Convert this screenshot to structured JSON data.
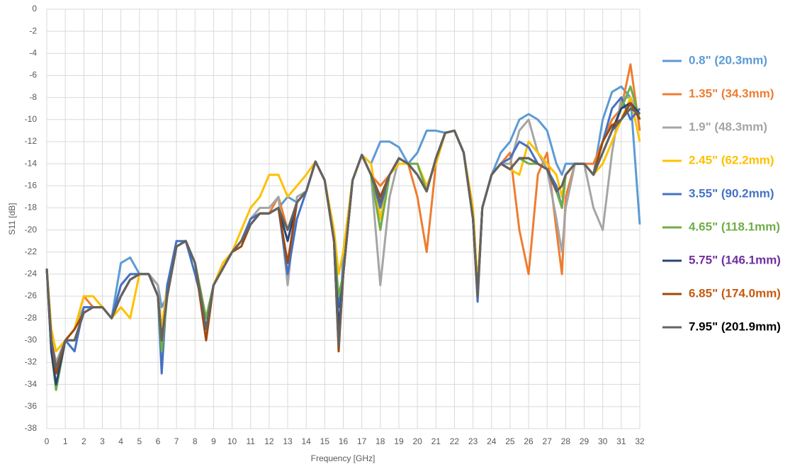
{
  "chart_data": {
    "type": "line",
    "x_label": "Frequency [GHz]",
    "y_label": "S11 [dB]",
    "xlim": [
      0,
      32
    ],
    "xticks": [
      0,
      1,
      2,
      3,
      4,
      5,
      6,
      7,
      8,
      9,
      10,
      11,
      12,
      13,
      14,
      15,
      16,
      17,
      18,
      19,
      20,
      21,
      22,
      23,
      24,
      25,
      26,
      27,
      28,
      29,
      30,
      31,
      32
    ],
    "ylim": [
      -38,
      0
    ],
    "yticks": [
      -38,
      -36,
      -34,
      -32,
      -30,
      -28,
      -26,
      -24,
      -22,
      -20,
      -18,
      -16,
      -14,
      -12,
      -10,
      -8,
      -6,
      -4,
      -2,
      0
    ],
    "grid": true,
    "legend": "right",
    "x": [
      0,
      0.25,
      0.5,
      1,
      1.5,
      2,
      2.5,
      3,
      3.5,
      4,
      4.5,
      5,
      5.5,
      6,
      6.2,
      6.5,
      7,
      7.5,
      8,
      8.6,
      9,
      9.5,
      10,
      10.5,
      11,
      11.5,
      12,
      12.5,
      13,
      13.5,
      14,
      14.5,
      15,
      15.5,
      15.75,
      16,
      16.5,
      17,
      17.5,
      18,
      18.5,
      19,
      19.5,
      20,
      20.5,
      21,
      21.5,
      22,
      22.5,
      23,
      23.25,
      23.5,
      24,
      24.5,
      25,
      25.5,
      26,
      26.5,
      27,
      27.5,
      27.8,
      28,
      28.5,
      29,
      29.5,
      30,
      30.5,
      31,
      31.5,
      32
    ],
    "series": [
      {
        "name": "0.8\" (20.3mm)",
        "color": "#5B9BD5",
        "label_color": "#5B9BD5",
        "values": [
          -23.5,
          -30,
          -33,
          -30,
          -30,
          -27.5,
          -27,
          -27,
          -28,
          -23,
          -22.5,
          -24,
          -24,
          -25,
          -27,
          -26,
          -21.5,
          -21,
          -23,
          -29,
          -25,
          -23.5,
          -22,
          -21,
          -19.5,
          -18.5,
          -18.5,
          -18,
          -17,
          -17.5,
          -16.5,
          -13.8,
          -15.5,
          -21,
          -30.5,
          -22,
          -15.5,
          -13.2,
          -14,
          -12,
          -12,
          -12.5,
          -14,
          -13,
          -11,
          -11,
          -11.2,
          -11,
          -13,
          -19,
          -26,
          -18,
          -15,
          -13,
          -12,
          -10,
          -9.5,
          -10,
          -11,
          -14,
          -15,
          -14,
          -14,
          -14,
          -15,
          -10,
          -7.5,
          -7,
          -8,
          -19.5
        ]
      },
      {
        "name": "1.35\" (34.3mm)",
        "color": "#ED7D31",
        "label_color": "#ED7D31",
        "values": [
          -23.5,
          -30,
          -32,
          -30,
          -29,
          -26,
          -27,
          -27,
          -28,
          -26,
          -24.5,
          -24,
          -24,
          -26,
          -31,
          -26,
          -21.5,
          -21,
          -23,
          -29,
          -25,
          -23.5,
          -22,
          -21,
          -19,
          -18.5,
          -18.5,
          -17,
          -20,
          -17.5,
          -16.5,
          -13.8,
          -15.5,
          -21,
          -30.5,
          -24,
          -15.5,
          -13.2,
          -15,
          -16,
          -15,
          -13.5,
          -14,
          -17,
          -22,
          -14,
          -11.2,
          -11,
          -13,
          -19,
          -26,
          -18,
          -15,
          -14,
          -13,
          -20,
          -24,
          -15,
          -13,
          -20,
          -24,
          -17,
          -14,
          -14,
          -14,
          -12,
          -10,
          -9,
          -5,
          -11
        ]
      },
      {
        "name": "1.9\" (48.3mm)",
        "color": "#A5A5A5",
        "label_color": "#A5A5A5",
        "values": [
          -23.5,
          -30,
          -32,
          -30,
          -29,
          -27,
          -27,
          -27,
          -28,
          -25,
          -24,
          -24,
          -24,
          -25,
          -29,
          -25,
          -21.5,
          -21,
          -23,
          -28,
          -25,
          -23.5,
          -22,
          -21,
          -19,
          -18,
          -18,
          -17,
          -25,
          -17,
          -16.5,
          -13.8,
          -15.5,
          -21,
          -30.5,
          -24,
          -15.5,
          -13.2,
          -15,
          -25,
          -17,
          -13.5,
          -14,
          -15,
          -16.5,
          -13.5,
          -11.2,
          -11,
          -13,
          -19,
          -26,
          -18,
          -15,
          -14,
          -14,
          -11,
          -10,
          -13,
          -14.5,
          -19,
          -22,
          -18,
          -14,
          -14,
          -18,
          -20,
          -13,
          -8,
          -8,
          -10
        ]
      },
      {
        "name": "2.45\" (62.2mm)",
        "color": "#FFC000",
        "label_color": "#FFC000",
        "values": [
          -23.5,
          -29,
          -31,
          -30,
          -29,
          -26,
          -26,
          -27,
          -28,
          -27,
          -28,
          -24,
          -24,
          -26,
          -29,
          -25,
          -21.5,
          -21,
          -23,
          -28,
          -25,
          -23,
          -22,
          -20,
          -18,
          -17,
          -15,
          -15,
          -17,
          -16,
          -15,
          -13.8,
          -15.5,
          -20,
          -24,
          -22,
          -15.5,
          -13.2,
          -14,
          -19,
          -15,
          -14,
          -14,
          -14,
          -16,
          -14,
          -11.2,
          -11,
          -13,
          -18,
          -25,
          -18,
          -15,
          -14,
          -14.5,
          -15,
          -12,
          -13,
          -14,
          -15,
          -17,
          -15,
          -14,
          -14,
          -15,
          -14,
          -12,
          -10,
          -8,
          -12
        ]
      },
      {
        "name": "3.55\" (90.2mm)",
        "color": "#4472C4",
        "label_color": "#4472C4",
        "values": [
          -23.5,
          -31,
          -33,
          -30,
          -31,
          -27,
          -27,
          -27,
          -28,
          -25,
          -24,
          -24,
          -24,
          -26,
          -33,
          -25,
          -21,
          -21,
          -24,
          -28,
          -25,
          -23.5,
          -22,
          -21,
          -19,
          -18.5,
          -18.5,
          -18,
          -24,
          -19,
          -16.5,
          -13.8,
          -15.5,
          -21,
          -27,
          -24,
          -15.5,
          -13.2,
          -15,
          -18,
          -15,
          -13.5,
          -14,
          -15,
          -16.5,
          -13.5,
          -11.2,
          -11,
          -13,
          -19,
          -26.5,
          -18,
          -15,
          -14,
          -13.5,
          -12,
          -12.5,
          -14,
          -14.5,
          -16,
          -18,
          -15,
          -14,
          -14,
          -15,
          -12,
          -9,
          -8,
          -10,
          -9
        ]
      },
      {
        "name": "4.65\" (118.1mm)",
        "color": "#70AD47",
        "label_color": "#70AD47",
        "values": [
          -23.5,
          -31,
          -34.5,
          -30,
          -30,
          -27.5,
          -27,
          -27,
          -28,
          -26,
          -24.5,
          -24,
          -24,
          -26,
          -31,
          -26,
          -21.5,
          -21,
          -23,
          -28,
          -25,
          -23.5,
          -22,
          -21,
          -19.5,
          -18.5,
          -18.5,
          -18,
          -20,
          -17.5,
          -16.5,
          -13.8,
          -15.5,
          -21,
          -26,
          -24,
          -15.5,
          -13.2,
          -15,
          -20,
          -15,
          -13.5,
          -14,
          -14,
          -16.5,
          -13.5,
          -11.2,
          -11,
          -13,
          -19,
          -26,
          -18,
          -15,
          -14,
          -14.5,
          -13.5,
          -14,
          -14,
          -14.5,
          -16.5,
          -18,
          -15,
          -14,
          -14,
          -15,
          -13,
          -11,
          -9,
          -7,
          -10
        ]
      },
      {
        "name": "5.75\" (146.1mm)",
        "color": "#264478",
        "label_color": "#7030A0",
        "values": [
          -23.5,
          -31,
          -34,
          -30,
          -30,
          -27.5,
          -27,
          -27,
          -28,
          -26,
          -24.5,
          -24,
          -24,
          -26,
          -30,
          -26,
          -21.5,
          -21,
          -23,
          -29,
          -25,
          -23.5,
          -22,
          -21,
          -19.5,
          -18.5,
          -18.5,
          -18,
          -21,
          -17.5,
          -16.5,
          -13.8,
          -15.5,
          -21,
          -29,
          -24,
          -15.5,
          -13.2,
          -15,
          -17,
          -15,
          -13.5,
          -14,
          -15,
          -16.5,
          -13.5,
          -11.2,
          -11,
          -13,
          -19,
          -26,
          -18,
          -15,
          -14,
          -14.5,
          -13.5,
          -13.5,
          -14,
          -14.5,
          -16.5,
          -16,
          -15,
          -14,
          -14,
          -15,
          -13,
          -11,
          -9,
          -8.5,
          -9.5
        ]
      },
      {
        "name": "6.85\" (174.0mm)",
        "color": "#9E480E",
        "label_color": "#C55A11",
        "values": [
          -23.5,
          -30,
          -33,
          -30,
          -29,
          -27.5,
          -27,
          -27,
          -28,
          -26,
          -24.5,
          -24,
          -24,
          -26,
          -30,
          -26,
          -21.5,
          -21,
          -23,
          -30,
          -25,
          -23.5,
          -22,
          -21.5,
          -19.5,
          -18.5,
          -18.5,
          -18,
          -23,
          -17.5,
          -16.5,
          -13.8,
          -15.5,
          -21,
          -31,
          -24,
          -15.5,
          -13.2,
          -15,
          -17,
          -15,
          -13.5,
          -14,
          -15,
          -16.5,
          -13.5,
          -11.2,
          -11,
          -13,
          -19,
          -26,
          -18,
          -15,
          -14,
          -14.5,
          -13.5,
          -13.5,
          -14,
          -14.5,
          -16.5,
          -16,
          -15,
          -14,
          -14,
          -15,
          -12,
          -10.5,
          -10,
          -8.5,
          -10
        ]
      },
      {
        "name": "7.95\" (201.9mm)",
        "color": "#636363",
        "label_color": "#000000",
        "values": [
          -23.5,
          -30,
          -32.5,
          -30,
          -30,
          -27.5,
          -27,
          -27,
          -28,
          -26,
          -24.5,
          -24,
          -24,
          -26,
          -30,
          -26,
          -21.5,
          -21,
          -23,
          -29,
          -25,
          -23.5,
          -22,
          -21,
          -19.5,
          -18.5,
          -18.5,
          -18,
          -20,
          -17.5,
          -16.5,
          -13.8,
          -15.5,
          -21,
          -30.5,
          -24,
          -15.5,
          -13.2,
          -15,
          -17.5,
          -15,
          -13.5,
          -14,
          -15,
          -16.5,
          -13.5,
          -11.2,
          -11,
          -13,
          -19,
          -26,
          -18,
          -15,
          -14,
          -14.5,
          -13.5,
          -13.5,
          -14,
          -14.5,
          -16.5,
          -16,
          -15,
          -14,
          -14,
          -15,
          -13,
          -11,
          -10,
          -9,
          -9.5
        ]
      }
    ]
  }
}
